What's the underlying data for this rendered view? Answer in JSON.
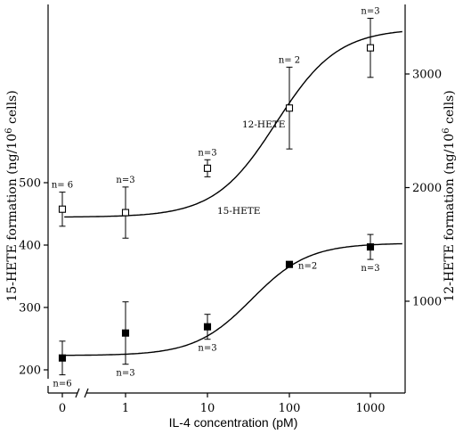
{
  "chart_data": {
    "type": "scatter",
    "xlabel": "IL-4 concentration (pM)",
    "ylabel_left": "15-HETE formation (ng/10⁶ cells)",
    "ylabel_right": "12-HETE formation (ng/10⁶ cells)",
    "x_categories": [
      "0",
      "1",
      "10",
      "100",
      "1000"
    ],
    "x_scale": "log (0 shown on a broken axis)",
    "y_left": {
      "range": [
        185,
        548
      ],
      "ticks": [
        200,
        300,
        400,
        500
      ]
    },
    "y_right": {
      "range": [
        300,
        3600
      ],
      "ticks": [
        1000,
        2000,
        3000
      ]
    },
    "series": [
      {
        "name": "12-HETE",
        "axis": "right",
        "marker": "open-square",
        "points": [
          {
            "x": "0",
            "y": 1810,
            "err": 150,
            "n": "n= 6"
          },
          {
            "x": "1",
            "y": 1780,
            "err": 225,
            "n": "n=3"
          },
          {
            "x": "10",
            "y": 2170,
            "err": 75,
            "n": "n=3"
          },
          {
            "x": "100",
            "y": 2700,
            "err": 360,
            "n": "n= 2"
          },
          {
            "x": "1000",
            "y": 3230,
            "err": 260,
            "n": "n=3"
          }
        ]
      },
      {
        "name": "15-HETE",
        "axis": "left",
        "marker": "filled-square",
        "points": [
          {
            "x": "0",
            "y": 219,
            "err": 27,
            "n": "n=6"
          },
          {
            "x": "1",
            "y": 259,
            "err": 50,
            "n": "n=3"
          },
          {
            "x": "10",
            "y": 269,
            "err": 20,
            "n": "n=3"
          },
          {
            "x": "100",
            "y": 369,
            "err": 0,
            "n": "n=2"
          },
          {
            "x": "1000",
            "y": 397,
            "err": 20,
            "n": "n=3"
          }
        ]
      }
    ],
    "curve_labels": [
      "12-HETE",
      "15-HETE"
    ]
  }
}
